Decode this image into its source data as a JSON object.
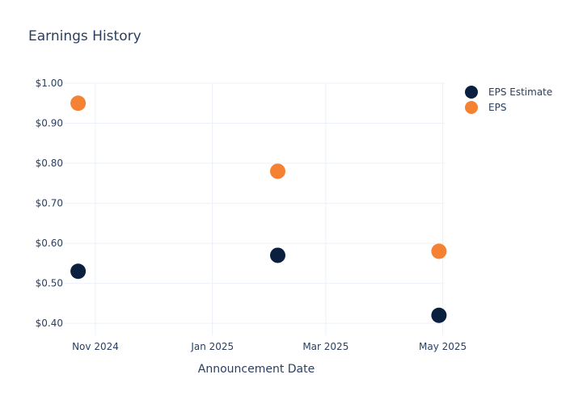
{
  "chart_data": {
    "type": "scatter",
    "title": "Earnings History",
    "xlabel": "Announcement Date",
    "ylabel": "",
    "x_ticks": [
      "2024-11-01",
      "2025-01-01",
      "2025-03-01",
      "2025-05-01"
    ],
    "x_tick_labels": [
      "Nov 2024",
      "Jan 2025",
      "Mar 2025",
      "May 2025"
    ],
    "xlim": [
      "2024-10-16",
      "2025-05-02"
    ],
    "y_ticks": [
      0.4,
      0.5,
      0.6,
      0.7,
      0.8,
      0.9,
      1.0
    ],
    "y_tick_labels": [
      "$0.40",
      "$0.50",
      "$0.60",
      "$0.70",
      "$0.80",
      "$0.90",
      "$1.00"
    ],
    "ylim": [
      0.37,
      1.0
    ],
    "grid": true,
    "legend_position": "top-right",
    "series": [
      {
        "name": "EPS Estimate",
        "color": "#0b1f3f",
        "points": [
          {
            "x": "2024-10-23",
            "y": 0.53
          },
          {
            "x": "2025-02-04",
            "y": 0.57
          },
          {
            "x": "2025-04-29",
            "y": 0.42
          }
        ]
      },
      {
        "name": "EPS",
        "color": "#f58232",
        "points": [
          {
            "x": "2024-10-23",
            "y": 0.95
          },
          {
            "x": "2025-02-04",
            "y": 0.78
          },
          {
            "x": "2025-04-29",
            "y": 0.58
          }
        ]
      }
    ]
  }
}
